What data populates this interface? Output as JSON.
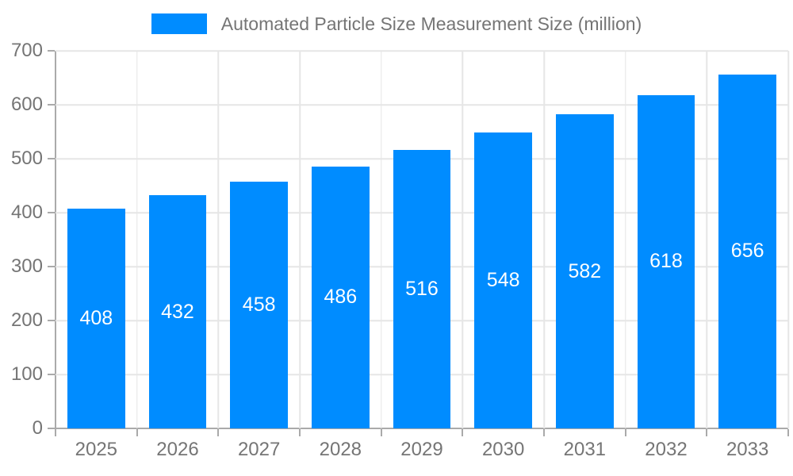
{
  "legend": {
    "label": "Automated Particle Size Measurement Size (million)"
  },
  "colors": {
    "bar": "#008cff",
    "grid": "#e6e6e6",
    "axis": "#aaaaaa",
    "text": "#757575",
    "bar_label": "#ffffff"
  },
  "chart_data": {
    "type": "bar",
    "title": "Automated Particle Size Measurement Size (million)",
    "series_name": "Automated Particle Size Measurement Size (million)",
    "categories": [
      "2025",
      "2026",
      "2027",
      "2028",
      "2029",
      "2030",
      "2031",
      "2032",
      "2033"
    ],
    "values": [
      408,
      432,
      458,
      486,
      516,
      548,
      582,
      618,
      656
    ],
    "bar_labels": [
      "408",
      "432",
      "458",
      "486",
      "516",
      "548",
      "582",
      "618",
      "656"
    ],
    "xlabel": "",
    "ylabel": "",
    "ylim": [
      0,
      700
    ],
    "ytick_step": 100,
    "yticks": [
      "0",
      "100",
      "200",
      "300",
      "400",
      "500",
      "600",
      "700"
    ],
    "grid": true,
    "legend_position": "top",
    "bar_value_position": "inside-middle"
  }
}
